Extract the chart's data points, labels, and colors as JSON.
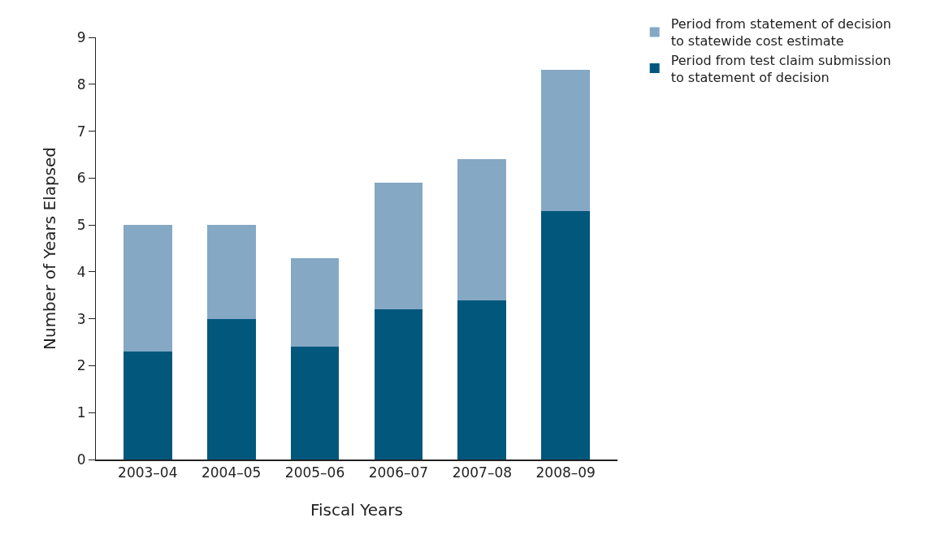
{
  "chart_data": {
    "type": "bar",
    "stacked": true,
    "xlabel": "Fiscal Years",
    "ylabel": "Number of Years Elapsed",
    "categories": [
      "2003–04",
      "2004–05",
      "2005–06",
      "2006–07",
      "2007–08",
      "2008–09"
    ],
    "series": [
      {
        "name": "Period from test claim submission\nto statement of decision",
        "color": "#02577d",
        "values": [
          2.3,
          3.0,
          2.4,
          3.2,
          3.4,
          5.3
        ]
      },
      {
        "name": "Period from statement of decision\nto statewide cost estimate",
        "color": "#85a8c4",
        "values": [
          2.7,
          2.0,
          1.9,
          2.7,
          3.0,
          3.0
        ]
      }
    ],
    "ylim": [
      0,
      9
    ],
    "yticks": [
      0,
      1,
      2,
      3,
      4,
      5,
      6,
      7,
      8,
      9
    ],
    "legend": "top right"
  }
}
